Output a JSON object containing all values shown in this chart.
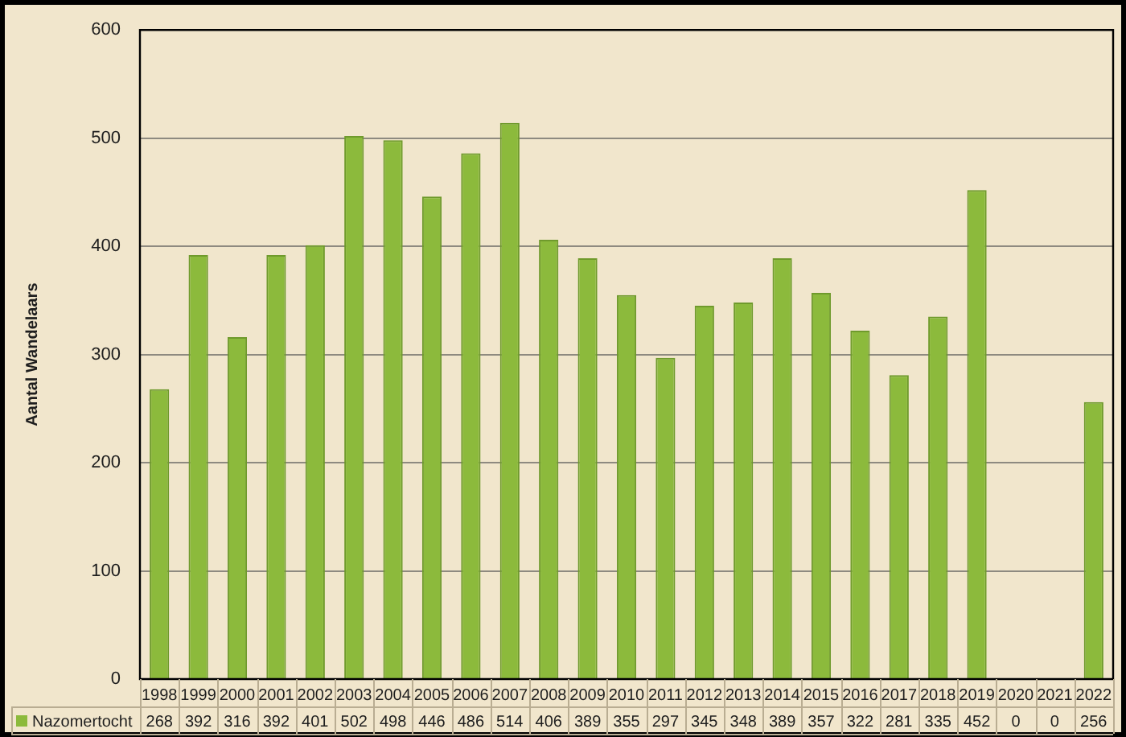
{
  "chart_data": {
    "type": "bar",
    "ylabel": "Aantal Wandelaars",
    "categories": [
      "1998",
      "1999",
      "2000",
      "2001",
      "2002",
      "2003",
      "2004",
      "2005",
      "2006",
      "2007",
      "2008",
      "2009",
      "2010",
      "2011",
      "2012",
      "2013",
      "2014",
      "2015",
      "2016",
      "2017",
      "2018",
      "2019",
      "2020",
      "2021",
      "2022"
    ],
    "series": [
      {
        "name": "Nazomertocht",
        "color": "#8cba3c",
        "values": [
          268,
          392,
          316,
          392,
          401,
          502,
          498,
          446,
          486,
          514,
          406,
          389,
          355,
          297,
          345,
          348,
          389,
          357,
          322,
          281,
          335,
          452,
          0,
          0,
          256
        ]
      }
    ],
    "ylim": [
      0,
      600
    ],
    "yticks": [
      0,
      100,
      200,
      300,
      400,
      500,
      600
    ],
    "grid": "y",
    "legend": "bottom",
    "data_labels": true
  }
}
